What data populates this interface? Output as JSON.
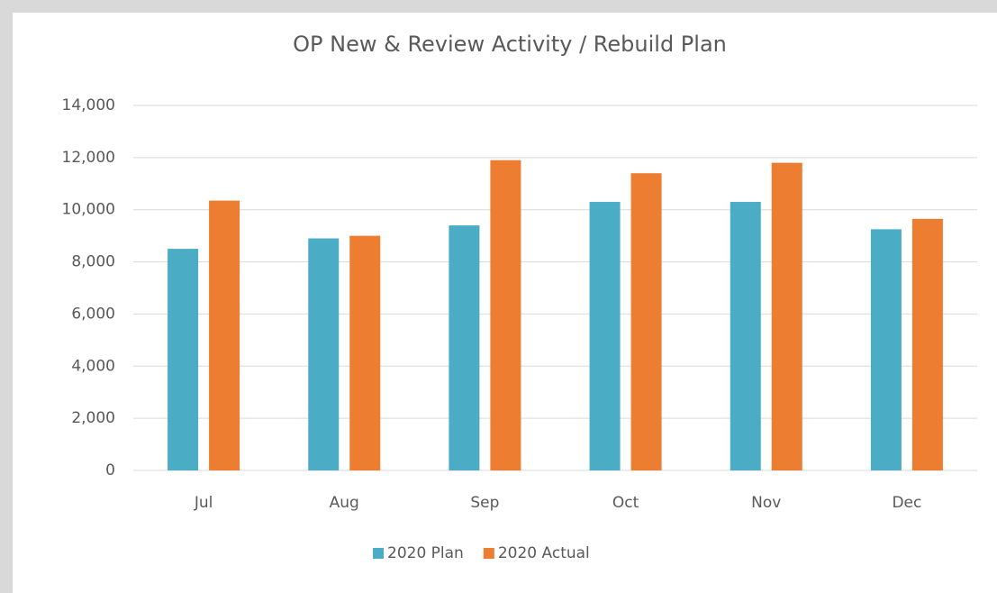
{
  "chart_data": {
    "type": "bar",
    "title": "OP New & Review Activity  / Rebuild Plan",
    "categories": [
      "Jul",
      "Aug",
      "Sep",
      "Oct",
      "Nov",
      "Dec"
    ],
    "series": [
      {
        "name": "2020 Plan",
        "color": "#4bacc6",
        "values": [
          8500,
          8900,
          9400,
          10300,
          10300,
          9250
        ]
      },
      {
        "name": "2020 Actual",
        "color": "#ed7d31",
        "values": [
          10350,
          9000,
          11900,
          11400,
          11800,
          9650
        ]
      }
    ],
    "ylim": [
      0,
      14000
    ],
    "yticks": [
      0,
      {
        "value": 2000,
        "label": "2,000"
      },
      {
        "value": 4000,
        "label": "4,000"
      },
      {
        "value": 6000,
        "label": "6,000"
      },
      {
        "value": 8000,
        "label": "8,000"
      },
      {
        "value": 10000,
        "label": "10,000"
      },
      {
        "value": 12000,
        "label": "12,000"
      },
      {
        "value": 14000,
        "label": "14,000"
      }
    ],
    "grid": true,
    "legend": "bottom"
  }
}
